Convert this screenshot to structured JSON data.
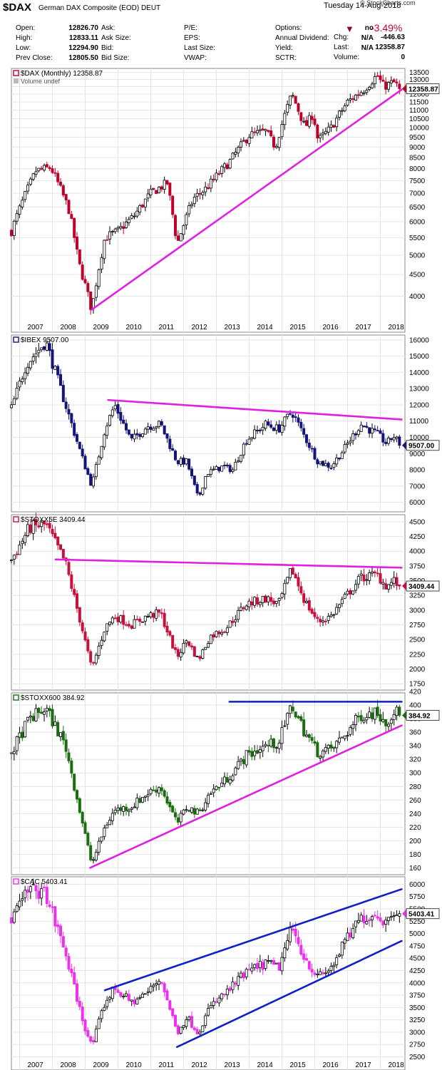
{
  "header": {
    "symbol": "$DAX",
    "name": "German DAX Composite (EOD)",
    "exchange": "DEUT",
    "date": "Tuesday  14-Aug-2018",
    "brand": "© StockCharts.com",
    "pct_change": "-3.49%",
    "quote_rows": [
      [
        "Open:",
        "12826.70",
        "Ask:",
        "",
        "P/E:",
        "",
        "Options:",
        "no"
      ],
      [
        "High:",
        "12833.11",
        "Ask Size:",
        "",
        "EPS:",
        "",
        "Annual Dividend:",
        "N/A"
      ],
      [
        "Low:",
        "12294.90",
        "Bid:",
        "",
        "Last Size:",
        "",
        "Yield:",
        "N/A"
      ],
      [
        "Prev Close:",
        "12805.50",
        "Bid Size:",
        "",
        "VWAP:",
        "",
        "SCTR:",
        ""
      ]
    ],
    "chg_label": "Chg:",
    "chg_value": "-446.63",
    "last_label": "Last:",
    "last_value": "12358.87",
    "volume_label": "Volume:",
    "volume_value": "0"
  },
  "colors": {
    "up_bar": "#000000",
    "trendline": "#e020e0",
    "blue_line": "#1020c8",
    "grid": "#e4e4e4",
    "dax_down": "#c0002a",
    "ibex": "#14147a",
    "stoxx": "#c8103c",
    "stoxx600": "#1a6e10",
    "cac": "#ee30ee"
  },
  "chart_data": [
    {
      "type": "candlestick",
      "title": "$DAX (Monthly) 12358.87",
      "legend_extra": "Volume undef",
      "last_label": "12358.87",
      "log_scale": true,
      "ylim": [
        3500,
        13800
      ],
      "y_ticks": [
        4000,
        4500,
        5000,
        5500,
        6000,
        6500,
        7000,
        7500,
        8000,
        8500,
        9000,
        9500,
        10000,
        10500,
        11000,
        11500,
        12000,
        12500,
        13000,
        13500
      ],
      "x_ticks": [
        "2007",
        "2008",
        "2009",
        "2010",
        "2011",
        "2012",
        "2013",
        "2014",
        "2015",
        "2016",
        "2017",
        "2018"
      ],
      "x_range": [
        2006.75,
        2018.75
      ],
      "series_color": "dax_down",
      "anchors": [
        [
          2006.75,
          5700
        ],
        [
          2007.5,
          7900
        ],
        [
          2007.95,
          8050
        ],
        [
          2008.5,
          6400
        ],
        [
          2008.8,
          4800
        ],
        [
          2009.2,
          3700
        ],
        [
          2009.6,
          5500
        ],
        [
          2010.0,
          5700
        ],
        [
          2010.5,
          6200
        ],
        [
          2011.0,
          7000
        ],
        [
          2011.5,
          7400
        ],
        [
          2011.8,
          5300
        ],
        [
          2012.3,
          6800
        ],
        [
          2012.7,
          7200
        ],
        [
          2013.4,
          8300
        ],
        [
          2014.0,
          9600
        ],
        [
          2014.5,
          9800
        ],
        [
          2014.8,
          9000
        ],
        [
          2015.3,
          12000
        ],
        [
          2015.7,
          10000
        ],
        [
          2015.95,
          10800
        ],
        [
          2016.1,
          9300
        ],
        [
          2016.5,
          10000
        ],
        [
          2017.0,
          11500
        ],
        [
          2017.5,
          12300
        ],
        [
          2017.9,
          13300
        ],
        [
          2018.1,
          12500
        ],
        [
          2018.4,
          12800
        ],
        [
          2018.62,
          12358.87
        ]
      ],
      "trendlines": [
        {
          "from": [
            2009.2,
            3720
          ],
          "to": [
            2018.65,
            12300
          ],
          "color": "trendline"
        }
      ]
    },
    {
      "type": "candlestick",
      "title": "$IBEX 9507.00",
      "last_label": "9507.00",
      "log_scale": false,
      "ylim": [
        5500,
        16300
      ],
      "y_ticks": [
        6000,
        7000,
        8000,
        9000,
        10000,
        11000,
        12000,
        13000,
        14000,
        15000,
        16000
      ],
      "x_range": [
        2006.75,
        2018.75
      ],
      "series_color": "ibex",
      "anchors": [
        [
          2006.75,
          11800
        ],
        [
          2007.2,
          14500
        ],
        [
          2007.8,
          15900
        ],
        [
          2008.4,
          12000
        ],
        [
          2008.9,
          8800
        ],
        [
          2009.2,
          7000
        ],
        [
          2009.6,
          10500
        ],
        [
          2009.9,
          12000
        ],
        [
          2010.4,
          9800
        ],
        [
          2010.9,
          10700
        ],
        [
          2011.3,
          10800
        ],
        [
          2011.8,
          8500
        ],
        [
          2012.1,
          8500
        ],
        [
          2012.45,
          6200
        ],
        [
          2012.7,
          7800
        ],
        [
          2013.2,
          8200
        ],
        [
          2013.5,
          8000
        ],
        [
          2013.9,
          9800
        ],
        [
          2014.5,
          10800
        ],
        [
          2014.9,
          10500
        ],
        [
          2015.3,
          11600
        ],
        [
          2015.7,
          10000
        ],
        [
          2016.1,
          8500
        ],
        [
          2016.5,
          8200
        ],
        [
          2016.9,
          9300
        ],
        [
          2017.4,
          10800
        ],
        [
          2017.9,
          10200
        ],
        [
          2018.2,
          9600
        ],
        [
          2018.4,
          10100
        ],
        [
          2018.62,
          9507
        ]
      ],
      "trendlines": [
        {
          "from": [
            2009.7,
            12300
          ],
          "to": [
            2018.65,
            11100
          ],
          "color": "trendline"
        }
      ]
    },
    {
      "type": "candlestick",
      "title": "$STOXX5E 3409.44",
      "last_label": "3409.44",
      "log_scale": false,
      "ylim": [
        1680,
        4620
      ],
      "y_ticks": [
        1750,
        2000,
        2250,
        2500,
        2750,
        3000,
        3250,
        3500,
        3750,
        4000,
        4250,
        4500
      ],
      "x_range": [
        2006.75,
        2018.75
      ],
      "series_color": "stoxx",
      "anchors": [
        [
          2006.75,
          3850
        ],
        [
          2007.3,
          4400
        ],
        [
          2007.8,
          4450
        ],
        [
          2008.4,
          3800
        ],
        [
          2008.9,
          2700
        ],
        [
          2009.2,
          2000
        ],
        [
          2009.6,
          2700
        ],
        [
          2009.9,
          2900
        ],
        [
          2010.4,
          2750
        ],
        [
          2010.9,
          2900
        ],
        [
          2011.3,
          2950
        ],
        [
          2011.8,
          2200
        ],
        [
          2012.1,
          2500
        ],
        [
          2012.45,
          2150
        ],
        [
          2012.8,
          2550
        ],
        [
          2013.3,
          2700
        ],
        [
          2013.9,
          3100
        ],
        [
          2014.5,
          3200
        ],
        [
          2014.9,
          3100
        ],
        [
          2015.3,
          3700
        ],
        [
          2015.7,
          3150
        ],
        [
          2016.1,
          2800
        ],
        [
          2016.5,
          2900
        ],
        [
          2016.9,
          3200
        ],
        [
          2017.4,
          3550
        ],
        [
          2017.9,
          3600
        ],
        [
          2018.2,
          3400
        ],
        [
          2018.4,
          3500
        ],
        [
          2018.62,
          3409.44
        ]
      ],
      "trendlines": [
        {
          "from": [
            2008.1,
            3860
          ],
          "to": [
            2018.65,
            3720
          ],
          "color": "trendline"
        }
      ]
    },
    {
      "type": "candlestick",
      "title": "$STOXX600 384.92",
      "last_label": "384.92",
      "log_scale": false,
      "ylim": [
        152,
        418
      ],
      "y_ticks": [
        160,
        180,
        200,
        220,
        240,
        260,
        280,
        300,
        320,
        340,
        360,
        380,
        400,
        420
      ],
      "x_range": [
        2006.75,
        2018.75
      ],
      "series_color": "stoxx600",
      "anchors": [
        [
          2006.75,
          330
        ],
        [
          2007.3,
          380
        ],
        [
          2007.8,
          395
        ],
        [
          2008.4,
          340
        ],
        [
          2008.9,
          230
        ],
        [
          2009.2,
          165
        ],
        [
          2009.6,
          220
        ],
        [
          2009.9,
          245
        ],
        [
          2010.4,
          250
        ],
        [
          2010.9,
          270
        ],
        [
          2011.3,
          280
        ],
        [
          2011.8,
          225
        ],
        [
          2012.1,
          250
        ],
        [
          2012.45,
          240
        ],
        [
          2012.8,
          270
        ],
        [
          2013.3,
          290
        ],
        [
          2013.9,
          325
        ],
        [
          2014.5,
          340
        ],
        [
          2014.9,
          345
        ],
        [
          2015.3,
          400
        ],
        [
          2015.7,
          360
        ],
        [
          2016.1,
          330
        ],
        [
          2016.5,
          335
        ],
        [
          2016.9,
          355
        ],
        [
          2017.4,
          385
        ],
        [
          2017.9,
          390
        ],
        [
          2018.2,
          375
        ],
        [
          2018.4,
          392
        ],
        [
          2018.62,
          384.92
        ]
      ],
      "trendlines": [
        {
          "from": [
            2009.15,
            160
          ],
          "to": [
            2018.65,
            370
          ],
          "color": "trendline"
        },
        {
          "from": [
            2013.4,
            405
          ],
          "to": [
            2018.65,
            405
          ],
          "color": "blue_line"
        }
      ]
    },
    {
      "type": "candlestick",
      "title": "$CAC 5403.41",
      "last_label": "5403.41",
      "log_scale": false,
      "ylim": [
        2450,
        6150
      ],
      "y_ticks": [
        2500,
        2750,
        3000,
        3250,
        3500,
        3750,
        4000,
        4250,
        4500,
        4750,
        5000,
        5250,
        5500,
        5750,
        6000
      ],
      "x_ticks": [
        "2007",
        "2008",
        "2009",
        "2010",
        "2011",
        "2012",
        "2013",
        "2014",
        "2015",
        "2016",
        "2017",
        "2018"
      ],
      "x_range": [
        2006.75,
        2018.75
      ],
      "series_color": "cac",
      "anchors": [
        [
          2006.75,
          5300
        ],
        [
          2007.3,
          5900
        ],
        [
          2007.8,
          5800
        ],
        [
          2008.4,
          4600
        ],
        [
          2008.9,
          3300
        ],
        [
          2009.2,
          2700
        ],
        [
          2009.6,
          3600
        ],
        [
          2009.9,
          3900
        ],
        [
          2010.4,
          3600
        ],
        [
          2010.9,
          3800
        ],
        [
          2011.3,
          4100
        ],
        [
          2011.8,
          3000
        ],
        [
          2012.1,
          3300
        ],
        [
          2012.45,
          3000
        ],
        [
          2012.8,
          3500
        ],
        [
          2013.3,
          3800
        ],
        [
          2013.9,
          4200
        ],
        [
          2014.5,
          4400
        ],
        [
          2014.9,
          4300
        ],
        [
          2015.3,
          5100
        ],
        [
          2015.7,
          4500
        ],
        [
          2016.1,
          4100
        ],
        [
          2016.5,
          4300
        ],
        [
          2016.9,
          4800
        ],
        [
          2017.4,
          5300
        ],
        [
          2017.9,
          5400
        ],
        [
          2018.2,
          5200
        ],
        [
          2018.4,
          5500
        ],
        [
          2018.62,
          5403.41
        ]
      ],
      "trendlines": [
        {
          "from": [
            2009.6,
            3850
          ],
          "to": [
            2018.65,
            5900
          ],
          "color": "blue_line"
        },
        {
          "from": [
            2011.8,
            2700
          ],
          "to": [
            2018.65,
            4850
          ],
          "color": "blue_line"
        }
      ]
    }
  ]
}
